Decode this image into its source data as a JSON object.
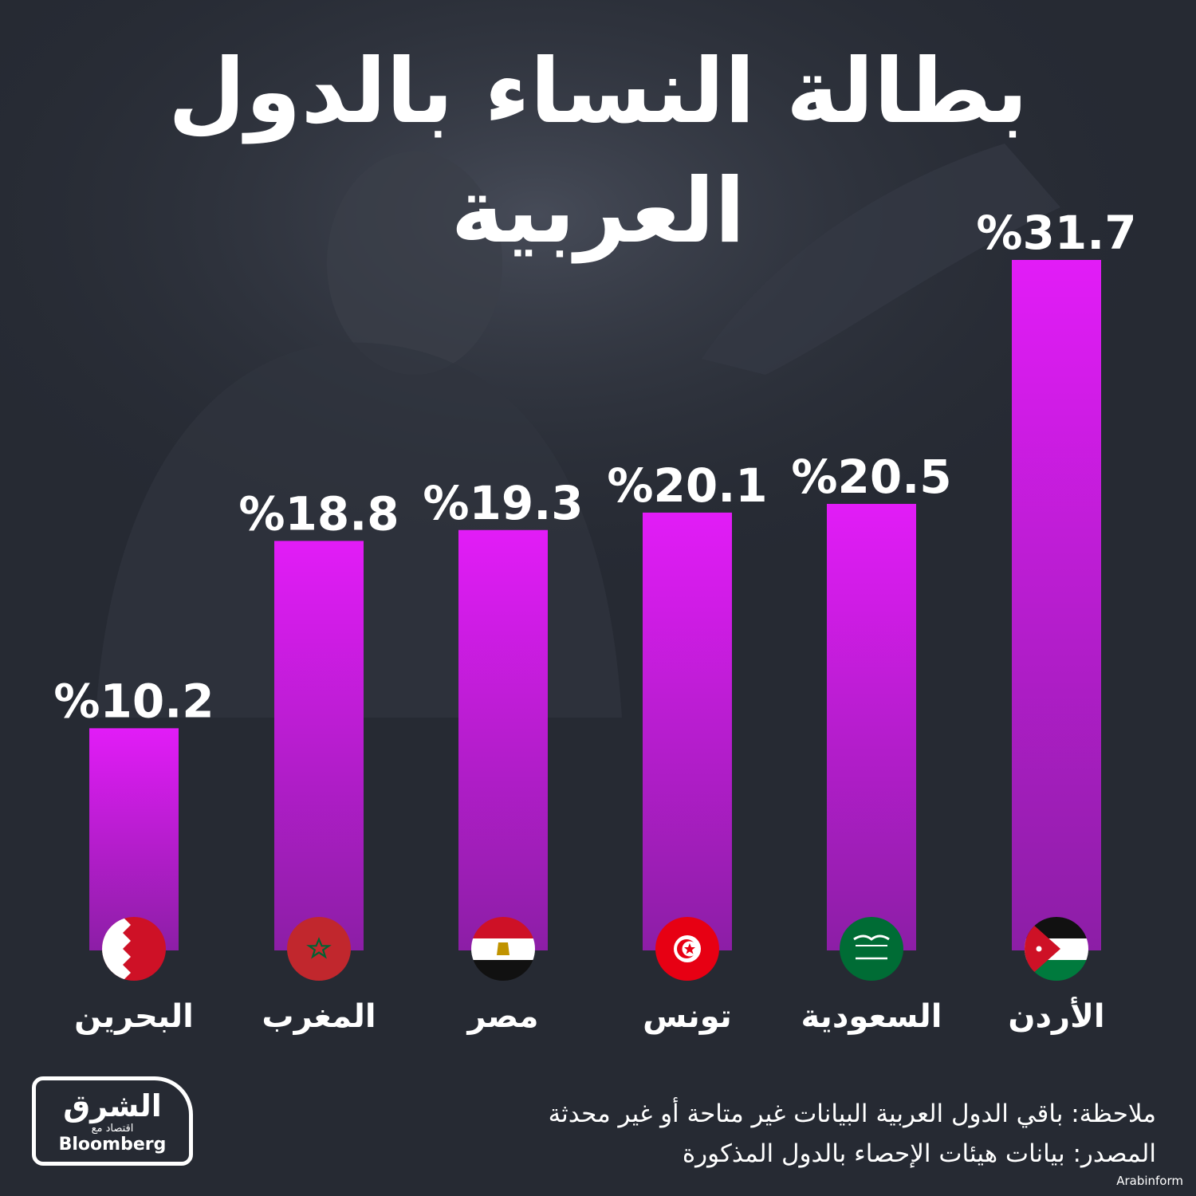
{
  "title": "بطالة النساء بالدول العربية",
  "colors": {
    "background": "#262a33",
    "bar_top": "#e21cf7",
    "bar_bottom": "#8c1ea6",
    "text": "#ffffff"
  },
  "chart_data": {
    "type": "bar",
    "categories": [
      "البحرين",
      "المغرب",
      "مصر",
      "تونس",
      "السعودية",
      "الأردن"
    ],
    "values": [
      10.2,
      18.8,
      19.3,
      20.1,
      20.5,
      31.7
    ],
    "labels": [
      "%10.2",
      "%18.8",
      "%19.3",
      "%20.1",
      "%20.5",
      "%31.7"
    ],
    "flags": [
      "bahrain-flag",
      "morocco-flag",
      "egypt-flag",
      "tunisia-flag",
      "saudi-flag",
      "jordan-flag"
    ],
    "title": "بطالة النساء بالدول العربية",
    "xlabel": "",
    "ylabel": "",
    "ylim": [
      0,
      31.7
    ],
    "grid": false
  },
  "footer": {
    "note": "ملاحظة: باقي الدول العربية البيانات غير متاحة أو غير محدثة",
    "source": "المصدر: بيانات هيئات الإحصاء بالدول المذكورة"
  },
  "logo": {
    "brand_ar": "الشرق",
    "brand_sub": "اقتصاد مع",
    "brand_en": "Bloomberg"
  },
  "credit": "Arabinform"
}
